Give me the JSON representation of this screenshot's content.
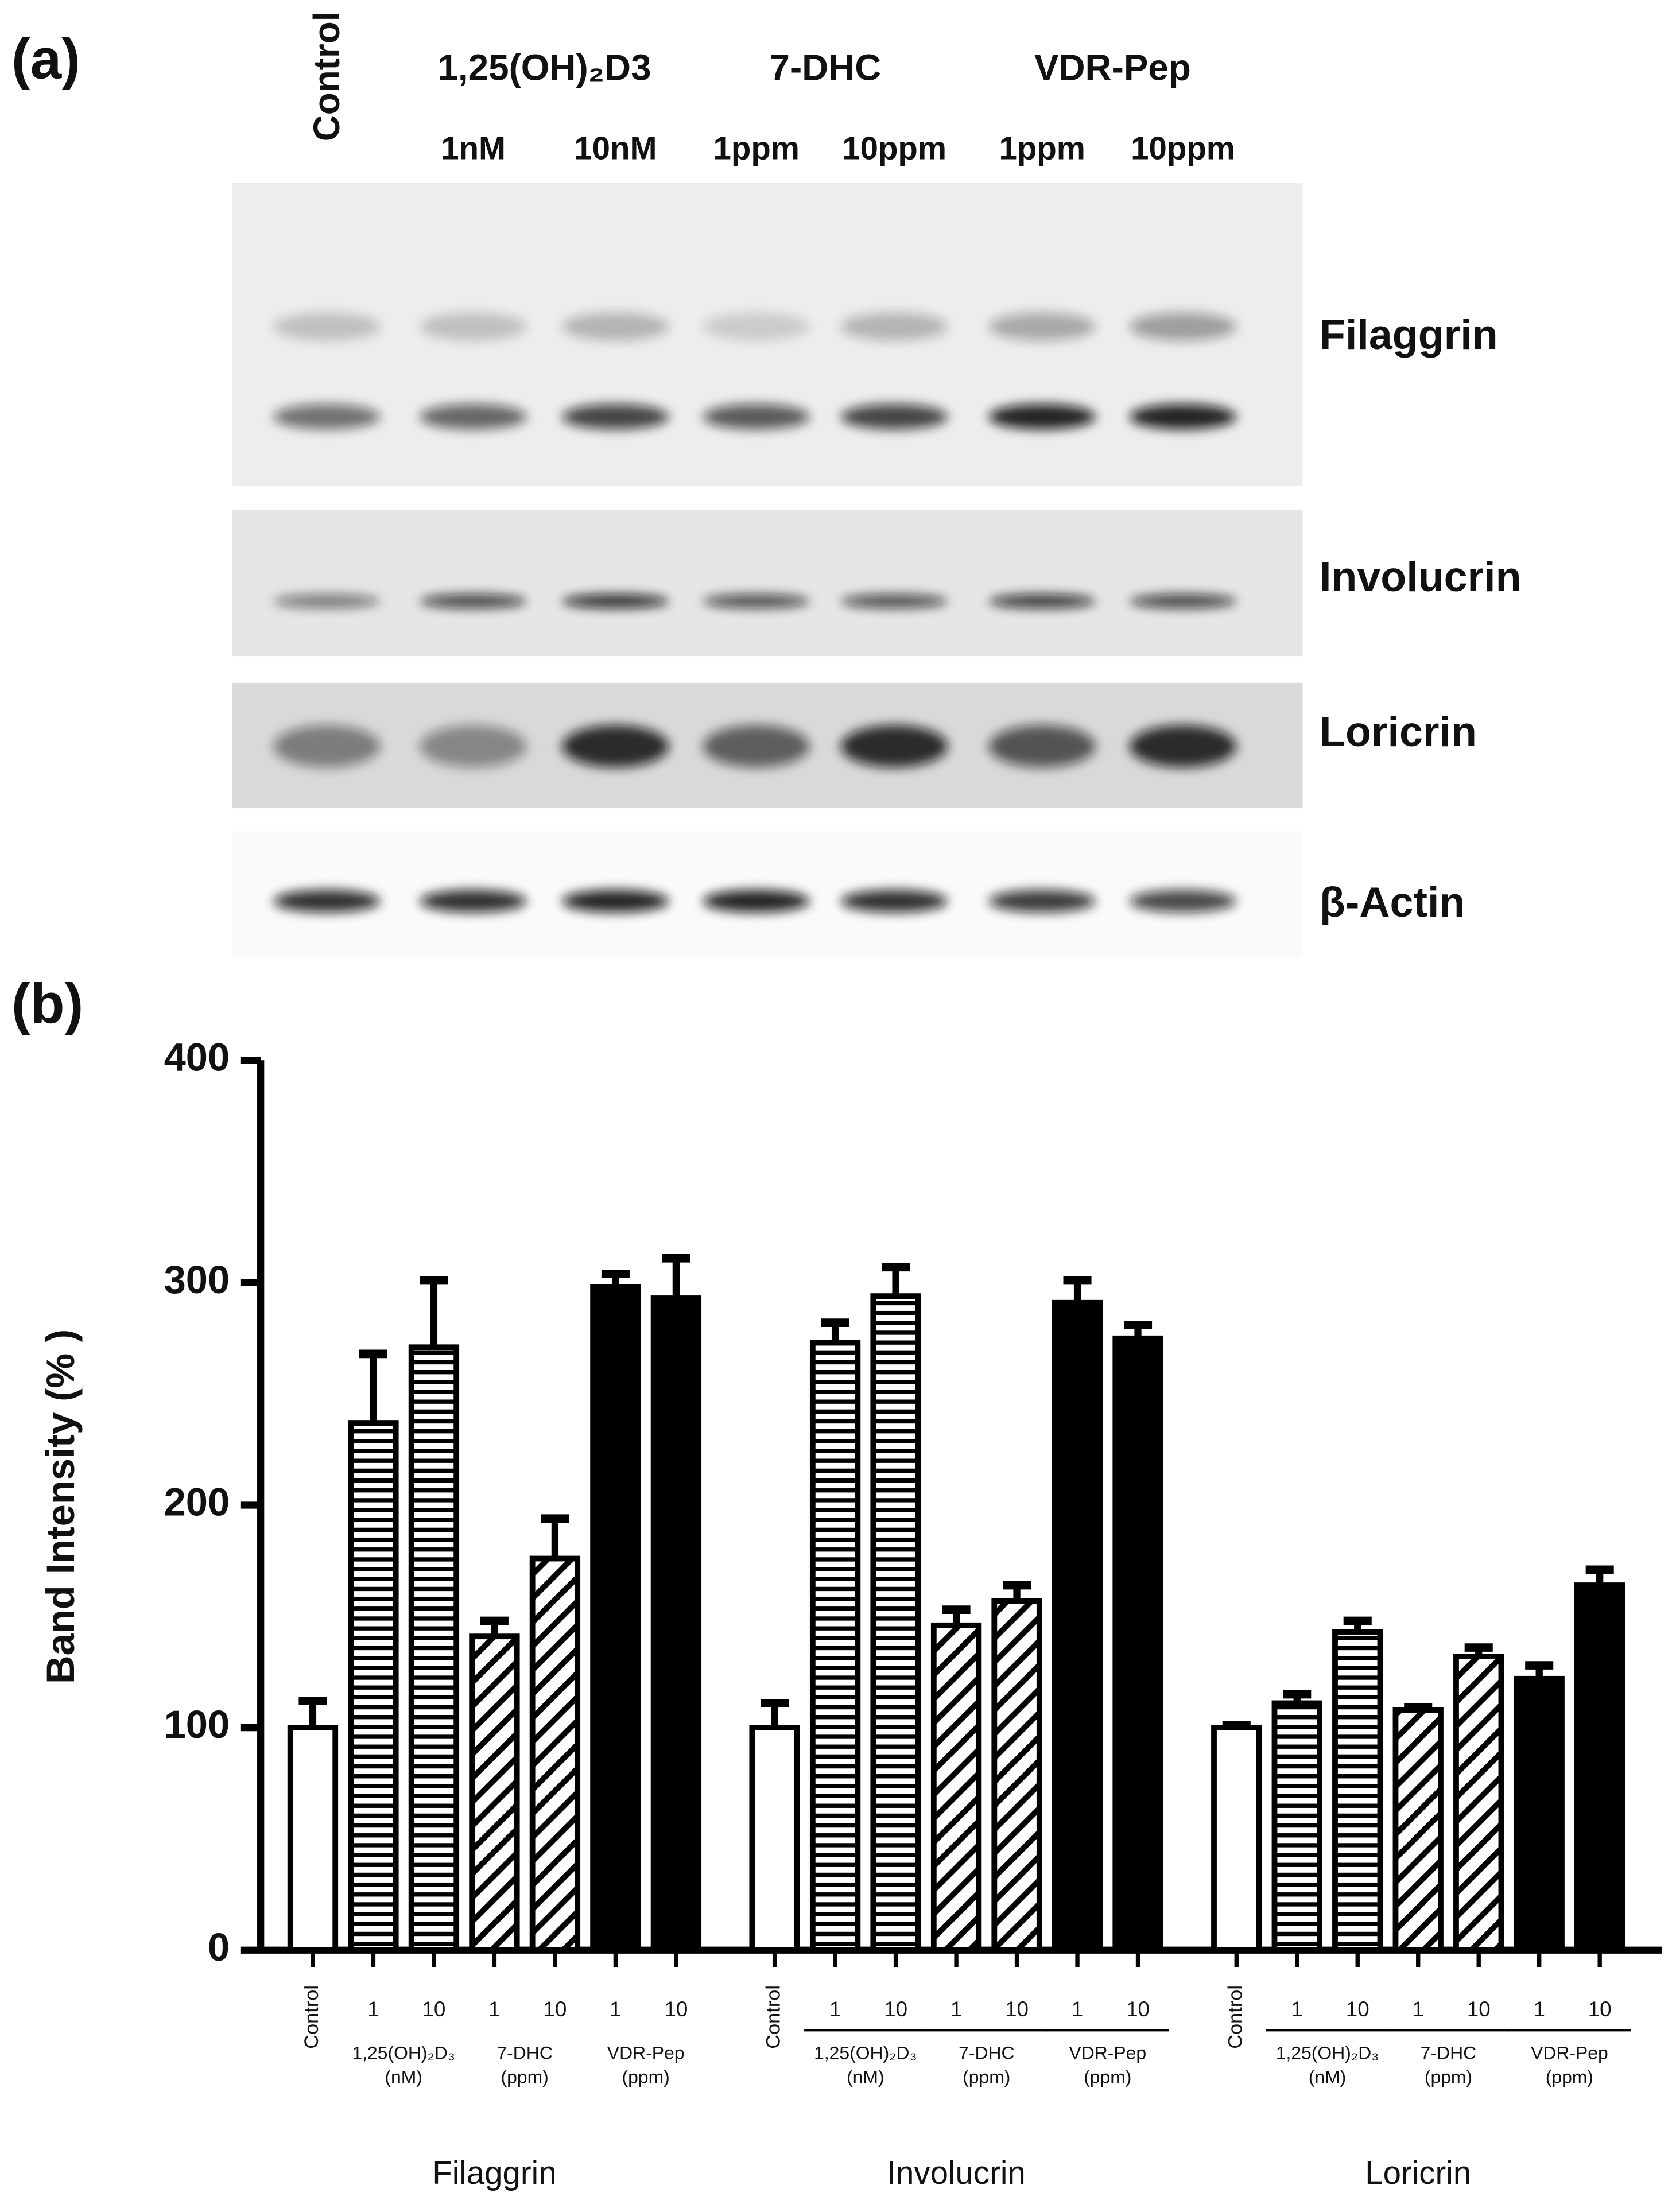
{
  "panel_a": {
    "label": "(a)",
    "control": "Control",
    "treatments": [
      {
        "name": "1,25(OH)₂D3",
        "doses": [
          "1nM",
          "10nM"
        ]
      },
      {
        "name": "7-DHC",
        "doses": [
          "1ppm",
          "10ppm"
        ]
      },
      {
        "name": "VDR-Pep",
        "doses": [
          "1ppm",
          "10ppm"
        ]
      }
    ],
    "proteins": [
      "Filaggrin",
      "Involucrin",
      "Loricrin",
      "β-Actin"
    ]
  },
  "panel_b_label": "(b)",
  "chart_data": {
    "type": "bar",
    "ylabel": "Band Intensity (% )",
    "categories": [
      "Filaggrin",
      "Involucrin",
      "Loricrin"
    ],
    "ylim": [
      0,
      400
    ],
    "yticks": [
      0,
      100,
      200,
      300,
      400
    ],
    "treatments": [
      {
        "name": "1,25(OH)₂D₃",
        "unit": "(nM)"
      },
      {
        "name": "7-DHC",
        "unit": "(ppm)"
      },
      {
        "name": "VDR-Pep",
        "unit": "(ppm)"
      }
    ],
    "series": [
      {
        "name": "Control",
        "pattern": "open",
        "color": "#000000",
        "values": [
          100,
          100,
          100
        ],
        "errors": [
          12,
          11,
          1
        ]
      },
      {
        "name": "1",
        "pattern": "horizontal",
        "color": "#000000",
        "values": [
          237,
          273,
          111
        ],
        "errors": [
          31,
          9,
          4
        ]
      },
      {
        "name": "10",
        "pattern": "horizontal",
        "color": "#000000",
        "values": [
          271,
          294,
          143
        ],
        "errors": [
          30,
          13,
          5
        ]
      },
      {
        "name": "1",
        "pattern": "diagonal",
        "color": "#000000",
        "values": [
          141,
          146,
          108
        ],
        "errors": [
          7,
          7,
          1
        ]
      },
      {
        "name": "10",
        "pattern": "diagonal",
        "color": "#000000",
        "values": [
          176,
          157,
          132
        ],
        "errors": [
          18,
          7,
          4
        ]
      },
      {
        "name": "1",
        "pattern": "solid",
        "color": "#000000",
        "values": [
          298,
          291,
          122
        ],
        "errors": [
          6,
          10,
          6
        ]
      },
      {
        "name": "10",
        "pattern": "solid",
        "color": "#000000",
        "values": [
          293,
          275,
          164
        ],
        "errors": [
          18,
          6,
          7
        ]
      }
    ]
  }
}
